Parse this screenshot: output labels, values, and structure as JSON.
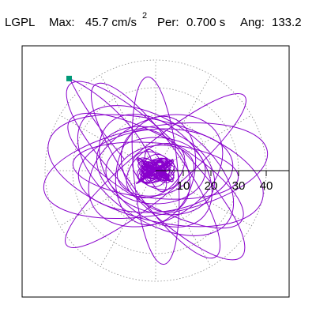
{
  "header": {
    "station": "LGPL",
    "max_label": "Max:",
    "max_value": "45.7 cm/s",
    "max_exp": "2",
    "per_label": "Per:",
    "per_value": "0.700 s",
    "ang_label": "Ang:",
    "ang_value": "133.2"
  },
  "chart_data": {
    "type": "polar-orbit",
    "radial_unit": "cm/s2",
    "r_ticks": [
      10,
      20,
      30,
      40
    ],
    "r_tick_labels": [
      "10",
      "20",
      "30",
      "40"
    ],
    "r_max": 50,
    "grid": true,
    "spoke_step_deg": 30,
    "peak": {
      "r": 45.7,
      "angle_deg": 133.2
    },
    "colors": {
      "trace": "#8800cc",
      "grid": "#888888",
      "axis": "#000000",
      "marker": "#009977"
    },
    "trace_loops": [
      {
        "rx": 5,
        "ry": 3,
        "rot": 0
      },
      {
        "rx": 7,
        "ry": 4,
        "rot": 20
      },
      {
        "rx": 6,
        "ry": 5,
        "rot": 70
      },
      {
        "rx": 8,
        "ry": 3,
        "rot": 110
      },
      {
        "rx": 9,
        "ry": 6,
        "rot": 150
      },
      {
        "rx": 12,
        "ry": 8,
        "rot": 40
      },
      {
        "rx": 14,
        "ry": 9,
        "rot": 10
      },
      {
        "rx": 16,
        "ry": 11,
        "rot": 120
      },
      {
        "rx": 18,
        "ry": 12,
        "rot": 0
      },
      {
        "rx": 20,
        "ry": 14,
        "rot": 75
      },
      {
        "rx": 22,
        "ry": 15,
        "rot": 160
      },
      {
        "rx": 24,
        "ry": 16,
        "rot": 135
      },
      {
        "rx": 26,
        "ry": 18,
        "rot": 30
      },
      {
        "rx": 28,
        "ry": 15,
        "rot": 5
      },
      {
        "rx": 30,
        "ry": 10,
        "rot": 175
      },
      {
        "rx": 32,
        "ry": 18,
        "rot": 145
      },
      {
        "rx": 34,
        "ry": 8,
        "rot": 95
      },
      {
        "rx": 36,
        "ry": 12,
        "rot": 150
      },
      {
        "rx": 38,
        "ry": 10,
        "rot": 125
      },
      {
        "rx": 41,
        "ry": 16,
        "rot": 10
      },
      {
        "rx": 40,
        "ry": 18,
        "rot": 165
      },
      {
        "rx": 42,
        "ry": 9,
        "rot": 40
      },
      {
        "rx": 44,
        "ry": 12,
        "rot": 135
      }
    ]
  }
}
